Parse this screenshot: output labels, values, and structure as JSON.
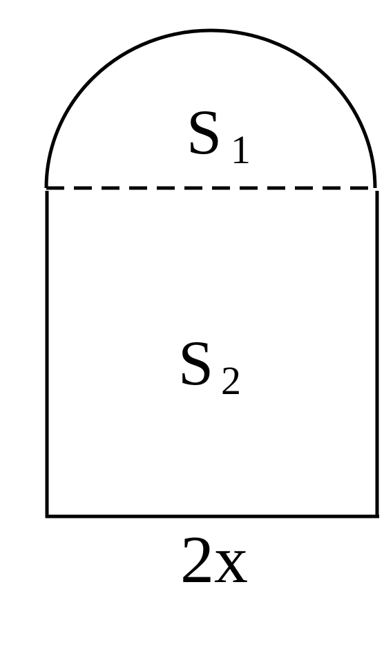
{
  "diagram": {
    "regions": {
      "top": {
        "symbol": "S",
        "subscript": "1",
        "shape": "semicircle"
      },
      "bottom": {
        "symbol": "S",
        "subscript": "2",
        "shape": "rectangle"
      }
    },
    "base_label": "2x",
    "divider_style": "dashed",
    "stroke_color": "#000000"
  }
}
